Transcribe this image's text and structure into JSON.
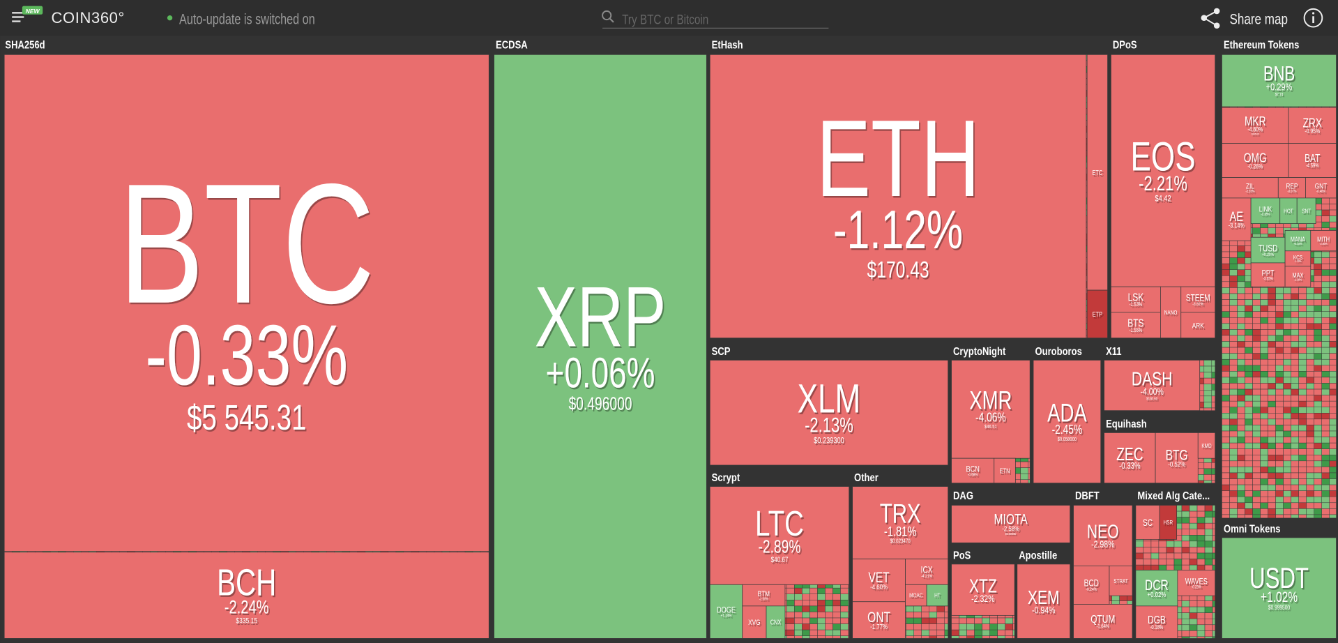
{
  "header": {
    "badge": "NEW",
    "logo": "COIN360°",
    "status": "Auto-update is switched on",
    "search_placeholder": "Try BTC or Bitcoin",
    "share": "Share map"
  },
  "groups": [
    {
      "label": "SHA256d",
      "tiles": [
        {
          "symbol": "BTC",
          "change": "-0.33%",
          "price": "$5 545.31"
        },
        {
          "symbol": "BCH",
          "change": "-2.24%",
          "price": "$335.15"
        }
      ]
    },
    {
      "label": "ECDSA",
      "tiles": [
        {
          "symbol": "XRP",
          "change": "+0.06%",
          "price": "$0.496000"
        }
      ]
    },
    {
      "label": "EtHash",
      "tiles": [
        {
          "symbol": "ETH",
          "change": "-1.12%",
          "price": "$170.43"
        },
        {
          "symbol": "ETC"
        },
        {
          "symbol": "ETP"
        }
      ]
    },
    {
      "label": "DPoS",
      "tiles": [
        {
          "symbol": "EOS",
          "change": "-2.21%",
          "price": "$4.42"
        },
        {
          "symbol": "LSK",
          "change": "-1.53%"
        },
        {
          "symbol": "BTS",
          "change": "-1.55%"
        },
        {
          "symbol": "NANO"
        },
        {
          "symbol": "STEEM",
          "change": "-3.82%"
        },
        {
          "symbol": "ARK"
        }
      ]
    },
    {
      "label": "Ethereum Tokens",
      "tiles": [
        {
          "symbol": "BNB",
          "change": "+0.29%",
          "price": "$7.74"
        },
        {
          "symbol": "MKR",
          "change": "-4.80%",
          "price": "$345.05"
        },
        {
          "symbol": "ZRX",
          "change": "-0.95%"
        },
        {
          "symbol": "OMG",
          "change": "-0.26%"
        },
        {
          "symbol": "BAT",
          "change": "-4.59%"
        },
        {
          "symbol": "ZIL",
          "change": "-2.55%"
        },
        {
          "symbol": "REP",
          "change": "-0.07%"
        },
        {
          "symbol": "GNT",
          "change": "-0.40%"
        },
        {
          "symbol": "AE",
          "change": "-3.14%"
        },
        {
          "symbol": "LINK",
          "change": "-0.38%"
        },
        {
          "symbol": "HOT"
        },
        {
          "symbol": "SNT"
        },
        {
          "symbol": "TUSD",
          "change": "+0.20%"
        },
        {
          "symbol": "MANA",
          "change": "+6.18%"
        },
        {
          "symbol": "MITH",
          "change": "-3.80%"
        },
        {
          "symbol": "PPT",
          "change": "-3.55%"
        },
        {
          "symbol": "KCS",
          "change": "-1.20%"
        },
        {
          "symbol": "MAX",
          "change": "-2.38%"
        }
      ]
    },
    {
      "label": "SCP",
      "tiles": [
        {
          "symbol": "XLM",
          "change": "-2.13%",
          "price": "$0.239300"
        }
      ]
    },
    {
      "label": "CryptoNight",
      "tiles": [
        {
          "symbol": "XMR",
          "change": "-4.06%",
          "price": "$46.51"
        },
        {
          "symbol": "BCN",
          "change": "-0.68%"
        },
        {
          "symbol": "ETN"
        }
      ]
    },
    {
      "label": "Ouroboros",
      "tiles": [
        {
          "symbol": "ADA",
          "change": "-2.45%",
          "price": "$0.058000"
        }
      ]
    },
    {
      "label": "X11",
      "tiles": [
        {
          "symbol": "DASH",
          "change": "-4.00%",
          "price": "$130.60"
        }
      ]
    },
    {
      "label": "Equihash",
      "tiles": [
        {
          "symbol": "ZEC",
          "change": "-0.33%"
        },
        {
          "symbol": "BTG",
          "change": "-0.52%"
        },
        {
          "symbol": "KMD"
        }
      ]
    },
    {
      "label": "Scrypt",
      "tiles": [
        {
          "symbol": "LTC",
          "change": "-2.89%",
          "price": "$40.67"
        },
        {
          "symbol": "DOGE",
          "change": "+1.14%"
        },
        {
          "symbol": "BTM",
          "change": "-2.50%"
        },
        {
          "symbol": "XVG"
        },
        {
          "symbol": "CNX"
        }
      ]
    },
    {
      "label": "Other",
      "tiles": [
        {
          "symbol": "TRX",
          "change": "-1.81%",
          "price": "$0.023470"
        },
        {
          "symbol": "VET",
          "change": "-4.60%"
        },
        {
          "symbol": "ICX",
          "change": "-4.21%"
        },
        {
          "symbol": "ONT",
          "change": "-1.77%"
        },
        {
          "symbol": "MOAC"
        },
        {
          "symbol": "HT"
        }
      ]
    },
    {
      "label": "DAG",
      "tiles": [
        {
          "symbol": "MIOTA",
          "change": "-2.58%",
          "price": "$0.409800"
        }
      ]
    },
    {
      "label": "DBFT",
      "tiles": [
        {
          "symbol": "NEO",
          "change": "-2.98%"
        },
        {
          "symbol": "BCD",
          "change": "-0.24%"
        },
        {
          "symbol": "STRAT"
        },
        {
          "symbol": "QTUM",
          "change": "-1.64%"
        }
      ]
    },
    {
      "label": "Mixed Alg Cate...",
      "tiles": [
        {
          "symbol": "SC"
        },
        {
          "symbol": "HSR"
        },
        {
          "symbol": "DCR",
          "change": "+0.02%"
        },
        {
          "symbol": "WAVES",
          "change": "-0.23%"
        },
        {
          "symbol": "DGB",
          "change": "-0.18%"
        }
      ]
    },
    {
      "label": "PoS",
      "tiles": [
        {
          "symbol": "XTZ",
          "change": "-2.32%"
        }
      ]
    },
    {
      "label": "Apostille",
      "tiles": [
        {
          "symbol": "XEM",
          "change": "-0.94%"
        }
      ]
    },
    {
      "label": "Omni Tokens",
      "tiles": [
        {
          "symbol": "USDT",
          "change": "+1.02%",
          "price": "$0.999500"
        }
      ]
    }
  ]
}
